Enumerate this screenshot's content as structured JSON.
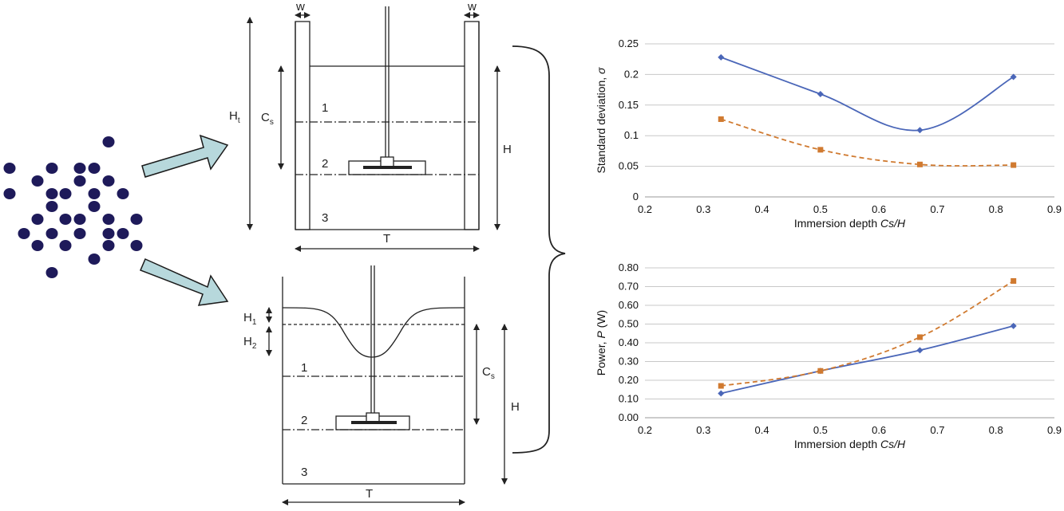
{
  "diagram": {
    "colors": {
      "particle": "#1e1a5a",
      "arrow_fill": "#b7d8dc",
      "arrow_stroke": "#1a1a1a",
      "line": "#222222"
    },
    "top_tank": {
      "labels": {
        "w_left": "w",
        "w_right": "w",
        "Ht_main": "H",
        "Ht_sub": "t",
        "Cs_main": "C",
        "Cs_sub": "s",
        "H": "H",
        "T": "T",
        "zone1": "1",
        "zone2": "2",
        "zone3": "3"
      }
    },
    "bottom_tank": {
      "labels": {
        "H1_main": "H",
        "H1_sub": "1",
        "H2_main": "H",
        "H2_sub": "2",
        "Cs_main": "C",
        "Cs_sub": "s",
        "H": "H",
        "T": "T",
        "zone1": "1",
        "zone2": "2",
        "zone3": "3"
      }
    }
  },
  "chart_data": [
    {
      "type": "line",
      "xlabel_main": "Immersion depth ",
      "xlabel_italic": "Cs/H",
      "ylabel_main": "Standard deviation, ",
      "ylabel_italic": "σ",
      "xlim": [
        0.2,
        0.9
      ],
      "ylim": [
        0,
        0.25
      ],
      "x_ticks": [
        "0.2",
        "0.3",
        "0.4",
        "0.5",
        "0.6",
        "0.7",
        "0.8",
        "0.9"
      ],
      "y_ticks": [
        "0",
        "0.05",
        "0.1",
        "0.15",
        "0.2",
        "0.25"
      ],
      "grid": "horizontal",
      "series": [
        {
          "marker": "diamond",
          "style": "solid",
          "color": "#4a66b8",
          "x": [
            0.33,
            0.5,
            0.67,
            0.83
          ],
          "y": [
            0.228,
            0.168,
            0.109,
            0.196
          ]
        },
        {
          "marker": "square",
          "style": "dashed",
          "color": "#d07a30",
          "x": [
            0.33,
            0.5,
            0.67,
            0.83
          ],
          "y": [
            0.127,
            0.077,
            0.053,
            0.052
          ]
        }
      ]
    },
    {
      "type": "line",
      "xlabel_main": "Immersion depth ",
      "xlabel_italic": "Cs/H",
      "ylabel_main": "Power, ",
      "ylabel_italic": "P",
      "ylabel_unit": " (W)",
      "xlim": [
        0.2,
        0.9
      ],
      "ylim": [
        0,
        0.8
      ],
      "x_ticks": [
        "0.2",
        "0.3",
        "0.4",
        "0.5",
        "0.6",
        "0.7",
        "0.8",
        "0.9"
      ],
      "y_ticks": [
        "0.00",
        "0.10",
        "0.20",
        "0.30",
        "0.40",
        "0.50",
        "0.60",
        "0.70",
        "0.80"
      ],
      "grid": "horizontal",
      "series": [
        {
          "marker": "diamond",
          "style": "solid",
          "color": "#4a66b8",
          "x": [
            0.33,
            0.5,
            0.67,
            0.83
          ],
          "y": [
            0.13,
            0.25,
            0.36,
            0.49
          ]
        },
        {
          "marker": "square",
          "style": "dashed",
          "color": "#d07a30",
          "x": [
            0.33,
            0.5,
            0.67,
            0.83
          ],
          "y": [
            0.17,
            0.25,
            0.43,
            0.73
          ]
        }
      ]
    }
  ]
}
